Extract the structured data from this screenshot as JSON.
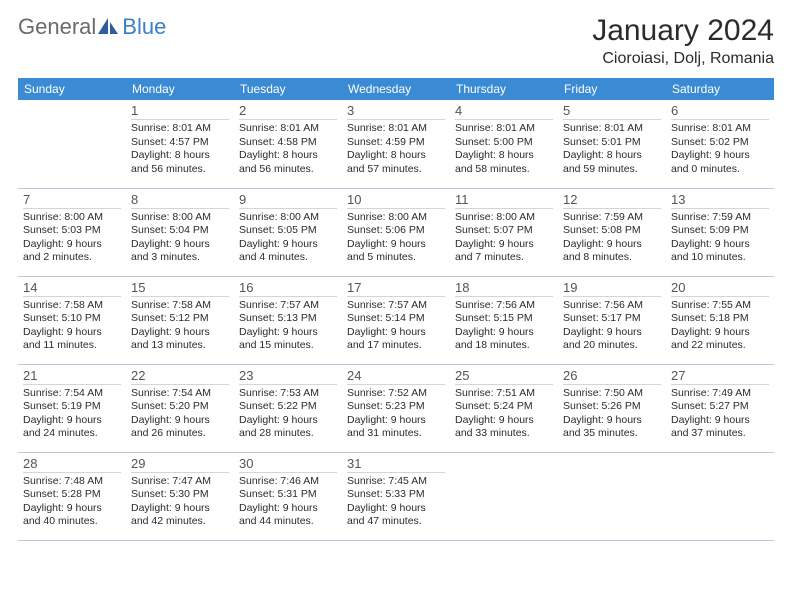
{
  "logo": {
    "general": "General",
    "blue": "Blue"
  },
  "title": "January 2024",
  "location": "Cioroiasi, Dolj, Romania",
  "day_headers": [
    "Sunday",
    "Monday",
    "Tuesday",
    "Wednesday",
    "Thursday",
    "Friday",
    "Saturday"
  ],
  "header_bg": "#3b8bd4",
  "weeks": [
    [
      null,
      {
        "n": "1",
        "sr": "8:01 AM",
        "ss": "4:57 PM",
        "dl1": "8 hours",
        "dl2": "and 56 minutes."
      },
      {
        "n": "2",
        "sr": "8:01 AM",
        "ss": "4:58 PM",
        "dl1": "8 hours",
        "dl2": "and 56 minutes."
      },
      {
        "n": "3",
        "sr": "8:01 AM",
        "ss": "4:59 PM",
        "dl1": "8 hours",
        "dl2": "and 57 minutes."
      },
      {
        "n": "4",
        "sr": "8:01 AM",
        "ss": "5:00 PM",
        "dl1": "8 hours",
        "dl2": "and 58 minutes."
      },
      {
        "n": "5",
        "sr": "8:01 AM",
        "ss": "5:01 PM",
        "dl1": "8 hours",
        "dl2": "and 59 minutes."
      },
      {
        "n": "6",
        "sr": "8:01 AM",
        "ss": "5:02 PM",
        "dl1": "9 hours",
        "dl2": "and 0 minutes."
      }
    ],
    [
      {
        "n": "7",
        "sr": "8:00 AM",
        "ss": "5:03 PM",
        "dl1": "9 hours",
        "dl2": "and 2 minutes."
      },
      {
        "n": "8",
        "sr": "8:00 AM",
        "ss": "5:04 PM",
        "dl1": "9 hours",
        "dl2": "and 3 minutes."
      },
      {
        "n": "9",
        "sr": "8:00 AM",
        "ss": "5:05 PM",
        "dl1": "9 hours",
        "dl2": "and 4 minutes."
      },
      {
        "n": "10",
        "sr": "8:00 AM",
        "ss": "5:06 PM",
        "dl1": "9 hours",
        "dl2": "and 5 minutes."
      },
      {
        "n": "11",
        "sr": "8:00 AM",
        "ss": "5:07 PM",
        "dl1": "9 hours",
        "dl2": "and 7 minutes."
      },
      {
        "n": "12",
        "sr": "7:59 AM",
        "ss": "5:08 PM",
        "dl1": "9 hours",
        "dl2": "and 8 minutes."
      },
      {
        "n": "13",
        "sr": "7:59 AM",
        "ss": "5:09 PM",
        "dl1": "9 hours",
        "dl2": "and 10 minutes."
      }
    ],
    [
      {
        "n": "14",
        "sr": "7:58 AM",
        "ss": "5:10 PM",
        "dl1": "9 hours",
        "dl2": "and 11 minutes."
      },
      {
        "n": "15",
        "sr": "7:58 AM",
        "ss": "5:12 PM",
        "dl1": "9 hours",
        "dl2": "and 13 minutes."
      },
      {
        "n": "16",
        "sr": "7:57 AM",
        "ss": "5:13 PM",
        "dl1": "9 hours",
        "dl2": "and 15 minutes."
      },
      {
        "n": "17",
        "sr": "7:57 AM",
        "ss": "5:14 PM",
        "dl1": "9 hours",
        "dl2": "and 17 minutes."
      },
      {
        "n": "18",
        "sr": "7:56 AM",
        "ss": "5:15 PM",
        "dl1": "9 hours",
        "dl2": "and 18 minutes."
      },
      {
        "n": "19",
        "sr": "7:56 AM",
        "ss": "5:17 PM",
        "dl1": "9 hours",
        "dl2": "and 20 minutes."
      },
      {
        "n": "20",
        "sr": "7:55 AM",
        "ss": "5:18 PM",
        "dl1": "9 hours",
        "dl2": "and 22 minutes."
      }
    ],
    [
      {
        "n": "21",
        "sr": "7:54 AM",
        "ss": "5:19 PM",
        "dl1": "9 hours",
        "dl2": "and 24 minutes."
      },
      {
        "n": "22",
        "sr": "7:54 AM",
        "ss": "5:20 PM",
        "dl1": "9 hours",
        "dl2": "and 26 minutes."
      },
      {
        "n": "23",
        "sr": "7:53 AM",
        "ss": "5:22 PM",
        "dl1": "9 hours",
        "dl2": "and 28 minutes."
      },
      {
        "n": "24",
        "sr": "7:52 AM",
        "ss": "5:23 PM",
        "dl1": "9 hours",
        "dl2": "and 31 minutes."
      },
      {
        "n": "25",
        "sr": "7:51 AM",
        "ss": "5:24 PM",
        "dl1": "9 hours",
        "dl2": "and 33 minutes."
      },
      {
        "n": "26",
        "sr": "7:50 AM",
        "ss": "5:26 PM",
        "dl1": "9 hours",
        "dl2": "and 35 minutes."
      },
      {
        "n": "27",
        "sr": "7:49 AM",
        "ss": "5:27 PM",
        "dl1": "9 hours",
        "dl2": "and 37 minutes."
      }
    ],
    [
      {
        "n": "28",
        "sr": "7:48 AM",
        "ss": "5:28 PM",
        "dl1": "9 hours",
        "dl2": "and 40 minutes."
      },
      {
        "n": "29",
        "sr": "7:47 AM",
        "ss": "5:30 PM",
        "dl1": "9 hours",
        "dl2": "and 42 minutes."
      },
      {
        "n": "30",
        "sr": "7:46 AM",
        "ss": "5:31 PM",
        "dl1": "9 hours",
        "dl2": "and 44 minutes."
      },
      {
        "n": "31",
        "sr": "7:45 AM",
        "ss": "5:33 PM",
        "dl1": "9 hours",
        "dl2": "and 47 minutes."
      },
      null,
      null,
      null
    ]
  ],
  "labels": {
    "sunrise": "Sunrise:",
    "sunset": "Sunset:",
    "daylight": "Daylight:"
  }
}
